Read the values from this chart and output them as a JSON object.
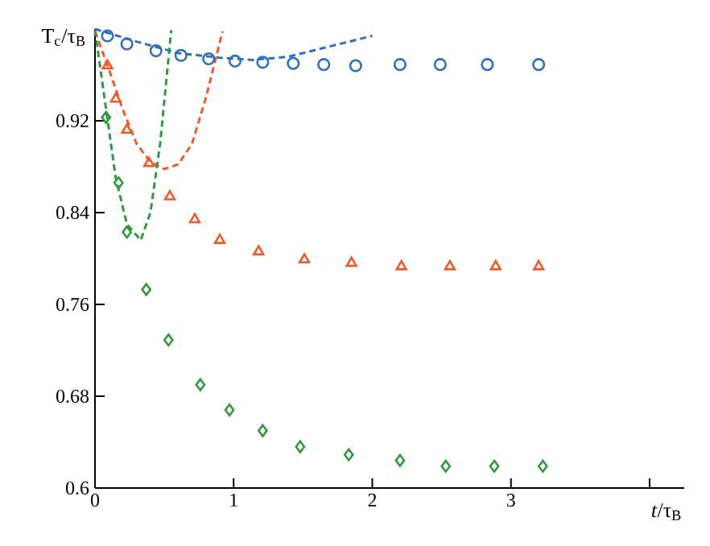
{
  "chart_data": {
    "type": "scatter",
    "xlabel": "*t*/τ$_{B}$",
    "ylabel": "T$_{c}$/τ$_{B}$",
    "xlim": [
      0,
      4.25
    ],
    "ylim": [
      0.6,
      1.0
    ],
    "xticks": [
      0,
      1,
      2,
      3,
      {
        "value": 4,
        "label": null
      }
    ],
    "yticks": [
      0.6,
      0.68,
      0.76,
      0.84,
      0.92
    ],
    "series": [
      {
        "type": "line",
        "line_style": "dashed",
        "color": "#2f6fc0",
        "x": [
          0,
          0.3,
          0.6,
          0.9,
          1.14,
          1.4,
          1.7,
          2.0
        ],
        "values": [
          1.0,
          0.989,
          0.979,
          0.975,
          0.973,
          0.976,
          0.985,
          0.994
        ]
      },
      {
        "type": "line",
        "line_style": "dashed",
        "color": "#f05a28",
        "x": [
          0,
          0.1,
          0.2,
          0.3,
          0.4,
          0.5,
          0.6,
          0.7,
          0.8,
          0.92
        ],
        "values": [
          0.998,
          0.965,
          0.93,
          0.9,
          0.884,
          0.878,
          0.882,
          0.9,
          0.94,
          0.998
        ]
      },
      {
        "type": "line",
        "line_style": "dashed",
        "color": "#2e9a3e",
        "x": [
          0,
          0.08,
          0.15,
          0.23,
          0.33,
          0.4,
          0.47,
          0.55
        ],
        "values": [
          0.999,
          0.93,
          0.87,
          0.83,
          0.816,
          0.84,
          0.9,
          0.999
        ]
      },
      {
        "marker": "circle",
        "color": "#2f6fc0",
        "x": [
          0.09,
          0.23,
          0.44,
          0.62,
          0.82,
          1.01,
          1.21,
          1.43,
          1.65,
          1.88,
          2.2,
          2.49,
          2.83,
          3.2
        ],
        "values": [
          0.994,
          0.987,
          0.981,
          0.977,
          0.974,
          0.972,
          0.971,
          0.97,
          0.969,
          0.968,
          0.969,
          0.969,
          0.969,
          0.969
        ]
      },
      {
        "marker": "triangle",
        "color": "#f05a28",
        "x": [
          0.09,
          0.15,
          0.23,
          0.39,
          0.54,
          0.72,
          0.9,
          1.18,
          1.51,
          1.85,
          2.21,
          2.56,
          2.89,
          3.2
        ],
        "values": [
          0.968,
          0.939,
          0.912,
          0.883,
          0.854,
          0.834,
          0.816,
          0.806,
          0.799,
          0.796,
          0.793,
          0.793,
          0.793,
          0.793
        ]
      },
      {
        "marker": "diamond",
        "color": "#2e9a3e",
        "x": [
          0.08,
          0.17,
          0.23,
          0.37,
          0.53,
          0.76,
          0.97,
          1.21,
          1.48,
          1.83,
          2.2,
          2.53,
          2.88,
          3.23
        ],
        "values": [
          0.923,
          0.866,
          0.823,
          0.773,
          0.729,
          0.69,
          0.668,
          0.65,
          0.636,
          0.629,
          0.624,
          0.619,
          0.619,
          0.619
        ]
      }
    ]
  }
}
